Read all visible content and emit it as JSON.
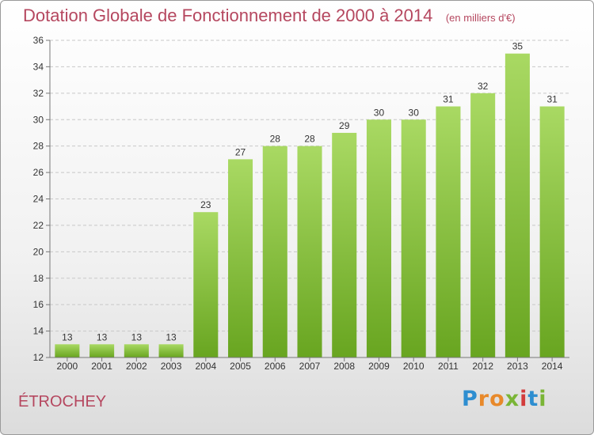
{
  "title": "Dotation Globale de Fonctionnement de 2000 à 2014",
  "unit": "(en milliers d'€)",
  "commune": "ÉTROCHEY",
  "brand": "Proxiti",
  "colors": {
    "bar": "#7dbb33",
    "bar_light": "#a5d65c",
    "text": "#b5475f",
    "axis_text": "#333333"
  },
  "chart_data": {
    "type": "bar",
    "categories": [
      "2000",
      "2001",
      "2002",
      "2003",
      "2004",
      "2005",
      "2006",
      "2007",
      "2008",
      "2009",
      "2010",
      "2011",
      "2012",
      "2013",
      "2014"
    ],
    "values": [
      13,
      13,
      13,
      13,
      23,
      27,
      28,
      28,
      29,
      30,
      30,
      31,
      32,
      35,
      31
    ],
    "ylim": [
      12,
      36
    ],
    "yticks": [
      12,
      14,
      16,
      18,
      20,
      22,
      24,
      26,
      28,
      30,
      32,
      34,
      36
    ],
    "grid": true
  }
}
